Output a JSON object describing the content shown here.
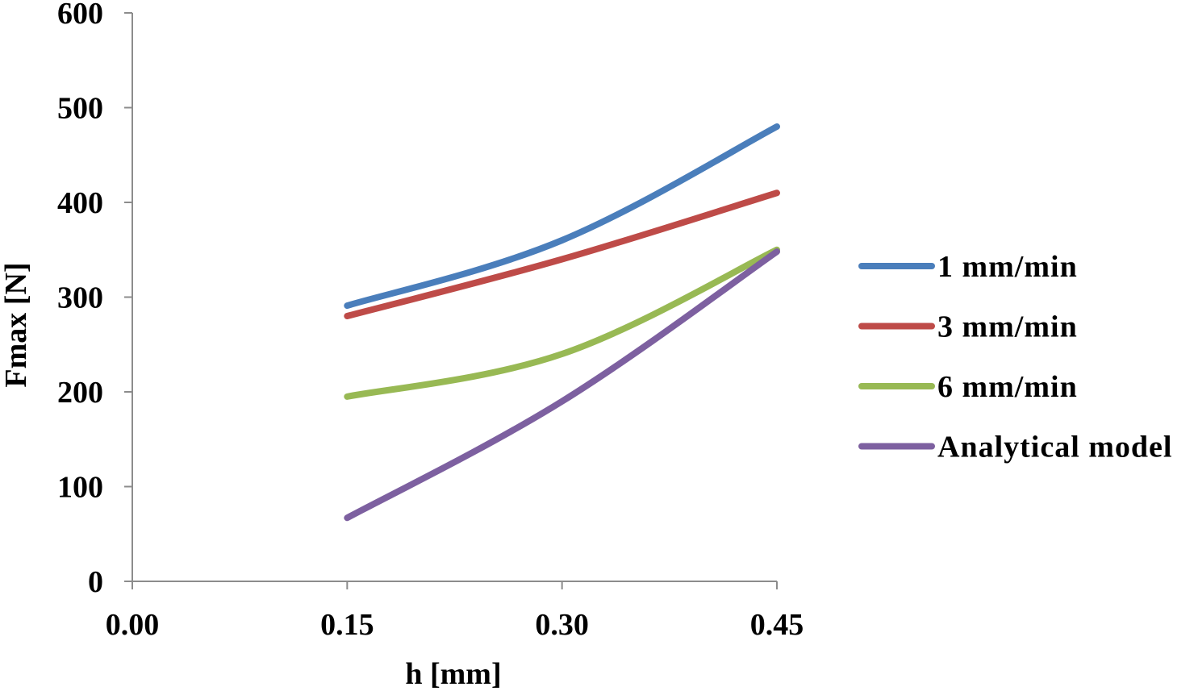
{
  "chart_data": {
    "type": "line",
    "xlabel": "h  [mm]",
    "ylabel": "Fmax  [N]",
    "x_ticks": [
      "0.00",
      "0.15",
      "0.30",
      "0.45"
    ],
    "y_ticks": [
      "0",
      "100",
      "200",
      "300",
      "400",
      "500",
      "600"
    ],
    "xlim": [
      0,
      0.45
    ],
    "ylim": [
      0,
      600
    ],
    "grid": false,
    "legend_position": "right",
    "x": [
      0.15,
      0.3,
      0.45
    ],
    "series": [
      {
        "name": "1 mm/min",
        "color": "#4a7ebb",
        "values": [
          291,
          360,
          480
        ]
      },
      {
        "name": "3 mm/min",
        "color": "#be4b48",
        "values": [
          280,
          340,
          410
        ]
      },
      {
        "name": "6 mm/min",
        "color": "#98b954",
        "values": [
          195,
          240,
          350
        ]
      },
      {
        "name": "Analytical model",
        "color": "#7d60a0",
        "values": [
          67,
          190,
          348
        ]
      }
    ]
  }
}
